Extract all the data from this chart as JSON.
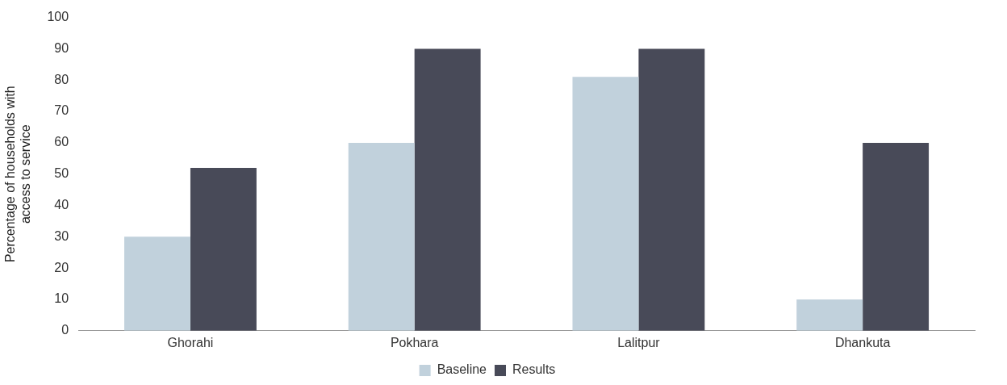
{
  "chart_data": {
    "type": "bar",
    "ylabel": "Percentage of households with access to service",
    "categories": [
      "Ghorahi",
      "Pokhara",
      "Lalitpur",
      "Dhankuta"
    ],
    "series": [
      {
        "name": "Baseline",
        "color": "#c1d1dc",
        "values": [
          30,
          60,
          81,
          10
        ]
      },
      {
        "name": "Results",
        "color": "#484a58",
        "values": [
          52,
          90,
          90,
          60
        ]
      }
    ],
    "ylim": [
      0,
      100
    ],
    "yticks": [
      0,
      10,
      20,
      30,
      40,
      50,
      60,
      70,
      80,
      90,
      100
    ],
    "grid": false,
    "legend": "bottom"
  }
}
